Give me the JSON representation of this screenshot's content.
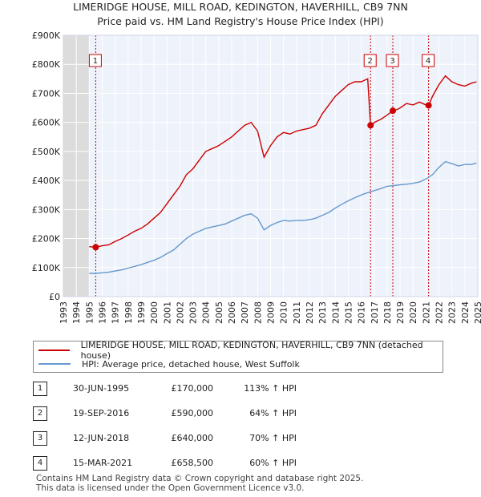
{
  "chart_data": {
    "type": "line",
    "title": "LIMERIDGE HOUSE, MILL ROAD, KEDINGTON, HAVERHILL, CB9 7NN",
    "subtitle": "Price paid vs. HM Land Registry's House Price Index (HPI)",
    "xlabel": "",
    "ylabel": "",
    "xlim": [
      1993,
      2025
    ],
    "ylim": [
      0,
      900000
    ],
    "x_ticks": [
      "1993",
      "1994",
      "1995",
      "1996",
      "1997",
      "1998",
      "1999",
      "2000",
      "2001",
      "2002",
      "2003",
      "2004",
      "2005",
      "2006",
      "2007",
      "2008",
      "2009",
      "2010",
      "2011",
      "2012",
      "2013",
      "2014",
      "2015",
      "2016",
      "2017",
      "2018",
      "2019",
      "2020",
      "2021",
      "2022",
      "2023",
      "2024",
      "2025"
    ],
    "y_ticks": [
      {
        "value": 0,
        "label": "£0"
      },
      {
        "value": 100000,
        "label": "£100K"
      },
      {
        "value": 200000,
        "label": "£200K"
      },
      {
        "value": 300000,
        "label": "£300K"
      },
      {
        "value": 400000,
        "label": "£400K"
      },
      {
        "value": 500000,
        "label": "£500K"
      },
      {
        "value": 600000,
        "label": "£600K"
      },
      {
        "value": 700000,
        "label": "£700K"
      },
      {
        "value": 800000,
        "label": "£800K"
      },
      {
        "value": 900000,
        "label": "£900K"
      }
    ],
    "grid": true,
    "shaded_regions": [
      {
        "from": 1993,
        "to": 1995.0
      },
      {
        "from": 2025.0,
        "to": 2025.2
      }
    ],
    "series": [
      {
        "name": "LIMERIDGE HOUSE, MILL ROAD, KEDINGTON, HAVERHILL, CB9 7NN (detached house)",
        "color": "#cc0000",
        "x": [
          1995.0,
          1995.5,
          1996.0,
          1996.5,
          1997.0,
          1997.5,
          1998.0,
          1998.5,
          1999.0,
          1999.5,
          2000.0,
          2000.5,
          2001.0,
          2001.5,
          2002.0,
          2002.5,
          2003.0,
          2003.5,
          2004.0,
          2004.5,
          2005.0,
          2005.5,
          2006.0,
          2006.5,
          2007.0,
          2007.5,
          2008.0,
          2008.5,
          2009.0,
          2009.5,
          2010.0,
          2010.5,
          2011.0,
          2011.5,
          2012.0,
          2012.5,
          2013.0,
          2013.5,
          2014.0,
          2014.5,
          2015.0,
          2015.5,
          2016.0,
          2016.5,
          2016.72,
          2016.8,
          2017.0,
          2017.5,
          2018.0,
          2018.44,
          2018.8,
          2019.0,
          2019.5,
          2020.0,
          2020.5,
          2021.0,
          2021.2,
          2021.5,
          2022.0,
          2022.5,
          2023.0,
          2023.5,
          2024.0,
          2024.5,
          2024.9
        ],
        "values": [
          172000,
          170000,
          175000,
          178000,
          190000,
          200000,
          212000,
          225000,
          235000,
          250000,
          270000,
          290000,
          320000,
          350000,
          380000,
          420000,
          440000,
          470000,
          500000,
          510000,
          520000,
          535000,
          550000,
          570000,
          590000,
          600000,
          570000,
          480000,
          520000,
          550000,
          565000,
          560000,
          570000,
          575000,
          580000,
          590000,
          630000,
          660000,
          690000,
          710000,
          730000,
          740000,
          740000,
          750000,
          590000,
          585000,
          600000,
          610000,
          625000,
          640000,
          645000,
          650000,
          665000,
          660000,
          670000,
          660000,
          658000,
          690000,
          730000,
          760000,
          740000,
          730000,
          725000,
          735000,
          740000
        ]
      },
      {
        "name": "HPI: Average price, detached house, West Suffolk",
        "color": "#6699cc",
        "x": [
          1995.0,
          1995.5,
          1996.0,
          1996.5,
          1997.0,
          1997.5,
          1998.0,
          1998.5,
          1999.0,
          1999.5,
          2000.0,
          2000.5,
          2001.0,
          2001.5,
          2002.0,
          2002.5,
          2003.0,
          2003.5,
          2004.0,
          2004.5,
          2005.0,
          2005.5,
          2006.0,
          2006.5,
          2007.0,
          2007.5,
          2008.0,
          2008.5,
          2009.0,
          2009.5,
          2010.0,
          2010.5,
          2011.0,
          2011.5,
          2012.0,
          2012.5,
          2013.0,
          2013.5,
          2014.0,
          2014.5,
          2015.0,
          2015.5,
          2016.0,
          2016.5,
          2017.0,
          2017.5,
          2018.0,
          2018.5,
          2019.0,
          2019.5,
          2020.0,
          2020.5,
          2021.0,
          2021.5,
          2022.0,
          2022.5,
          2023.0,
          2023.5,
          2024.0,
          2024.5,
          2024.9
        ],
        "values": [
          80000,
          80000,
          82000,
          84000,
          88000,
          92000,
          98000,
          104000,
          110000,
          118000,
          125000,
          135000,
          148000,
          160000,
          180000,
          200000,
          215000,
          225000,
          235000,
          240000,
          245000,
          250000,
          260000,
          270000,
          280000,
          285000,
          270000,
          230000,
          245000,
          255000,
          262000,
          260000,
          262000,
          262000,
          265000,
          270000,
          280000,
          290000,
          305000,
          318000,
          330000,
          340000,
          350000,
          358000,
          365000,
          372000,
          380000,
          382000,
          385000,
          387000,
          390000,
          395000,
          405000,
          420000,
          445000,
          465000,
          458000,
          450000,
          455000,
          455000,
          460000
        ]
      }
    ],
    "markers": [
      {
        "label": "1",
        "x": 1995.5,
        "y": 170000
      },
      {
        "label": "2",
        "x": 2016.72,
        "y": 590000
      },
      {
        "label": "3",
        "x": 2018.44,
        "y": 640000
      },
      {
        "label": "4",
        "x": 2021.2,
        "y": 658500
      }
    ]
  },
  "legend": {
    "property_label": "LIMERIDGE HOUSE, MILL ROAD, KEDINGTON, HAVERHILL, CB9 7NN (detached house)",
    "hpi_label": "HPI: Average price, detached house, West Suffolk",
    "property_color": "#cc0000",
    "hpi_color": "#6699cc"
  },
  "transactions": [
    {
      "num": "1",
      "date": "30-JUN-1995",
      "price": "£170,000",
      "hpi": "113% ↑ HPI"
    },
    {
      "num": "2",
      "date": "19-SEP-2016",
      "price": "£590,000",
      "hpi": "64% ↑ HPI"
    },
    {
      "num": "3",
      "date": "12-JUN-2018",
      "price": "£640,000",
      "hpi": "70% ↑ HPI"
    },
    {
      "num": "4",
      "date": "15-MAR-2021",
      "price": "£658,500",
      "hpi": "60% ↑ HPI"
    }
  ],
  "footer": {
    "line1": "Contains HM Land Registry data © Crown copyright and database right 2025.",
    "line2": "This data is licensed under the Open Government Licence v3.0."
  }
}
